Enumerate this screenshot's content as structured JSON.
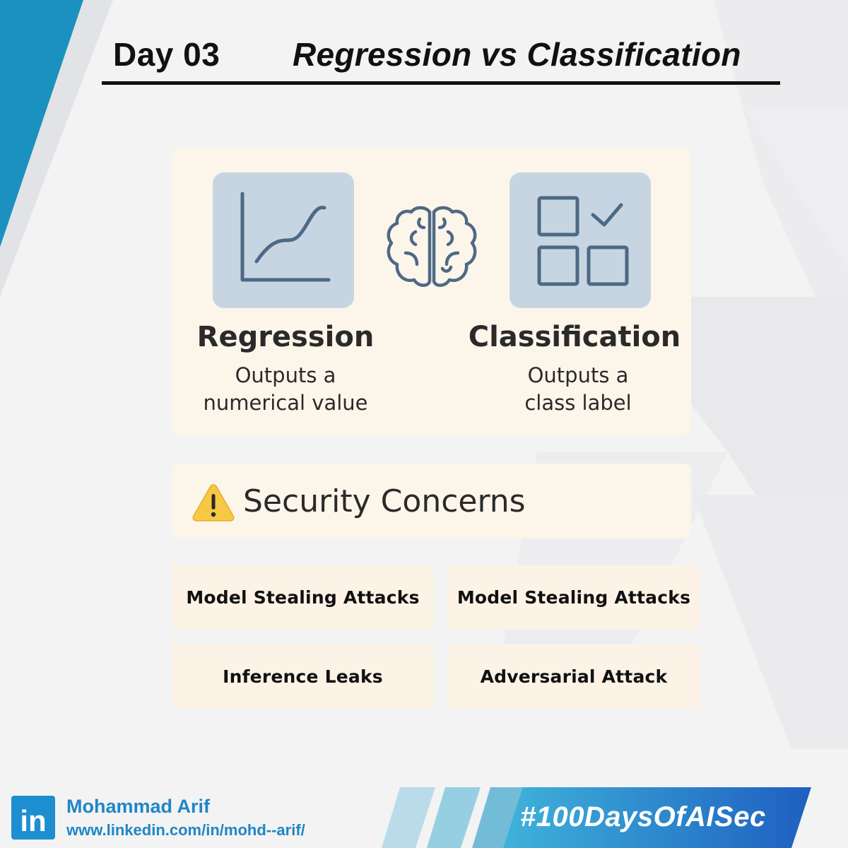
{
  "header": {
    "day": "Day 03",
    "title": "Regression vs Classification"
  },
  "overview": {
    "regression": {
      "icon": "line-chart-icon",
      "title": "Regression",
      "desc_line1": "Outputs a",
      "desc_line2": "numerical value"
    },
    "center_icon": "brain-icon",
    "classification": {
      "icon": "grid-checkmark-icon",
      "title": "Classification",
      "desc_line1": "Outputs a",
      "desc_line2": "class label"
    }
  },
  "security": {
    "icon": "warning-icon",
    "title": "Security Concerns",
    "items": [
      "Model Stealing Attacks",
      "Model Stealing Attacks",
      "Inference Leaks",
      "Adversarial Attack"
    ]
  },
  "footer": {
    "badge": "in",
    "name": "Mohammad Arif",
    "url": "www.linkedin.com/in/mohd--arif/",
    "hashtag": "#100DaysOfAISec"
  },
  "colors": {
    "accent_blue": "#1d8fd0",
    "tile_blue": "#c7d5e2",
    "icon_stroke": "#4d6985",
    "card_cream": "#fcf5ea",
    "warning_yellow": "#f7c843"
  }
}
